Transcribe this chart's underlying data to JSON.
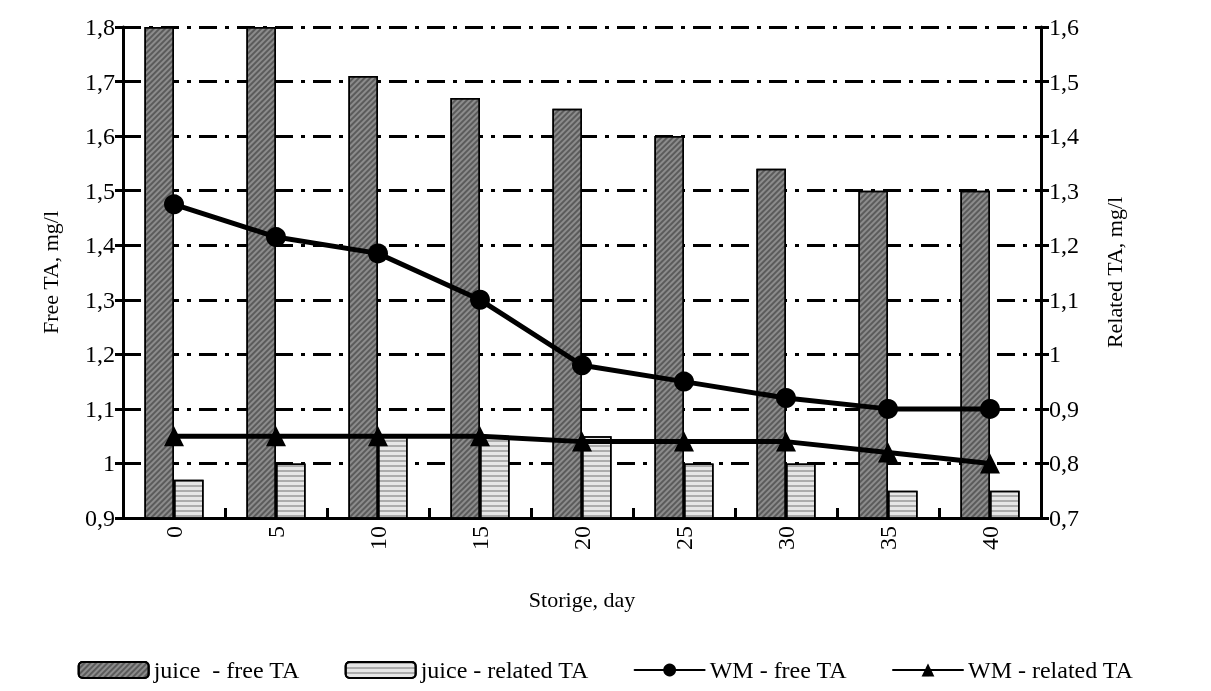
{
  "chart_data": {
    "type": "bar",
    "xlabel": "Storige, day",
    "ylabel": "Free TA, mg/l",
    "y2label": "Related TA, mg/l",
    "categories": [
      "0",
      "5",
      "10",
      "15",
      "20",
      "25",
      "30",
      "35",
      "40"
    ],
    "series": [
      {
        "name": "juice  - free TA",
        "color": "#8c8c8c",
        "values": [
          1.8,
          1.8,
          1.71,
          1.67,
          1.65,
          1.6,
          1.54,
          1.5,
          1.5
        ]
      },
      {
        "name": "juice - related TA",
        "axis": "y2",
        "color": "#e6e6e6",
        "values": [
          0.77,
          0.8,
          0.85,
          0.85,
          0.85,
          0.8,
          0.8,
          0.75,
          0.75
        ]
      },
      {
        "name": "WM - free TA",
        "type": "line",
        "color": "#000000",
        "marker": "circle",
        "line_style": "solid",
        "values": [
          1.475,
          1.415,
          1.385,
          1.3,
          1.18,
          1.15,
          1.12,
          1.1,
          1.1
        ]
      },
      {
        "name": "WM - related TA",
        "type": "line",
        "axis": "y2",
        "color": "#000000",
        "marker": "triangle",
        "line_style": "solid",
        "values": [
          0.85,
          0.85,
          0.85,
          0.85,
          0.84,
          0.84,
          0.84,
          0.82,
          0.8
        ]
      }
    ],
    "ylim": [
      0.9,
      1.8
    ],
    "yticks": [
      {
        "value": 0.9,
        "label": "0,9"
      },
      {
        "value": 1.0,
        "label": "1"
      },
      {
        "value": 1.1,
        "label": "1,1"
      },
      {
        "value": 1.2,
        "label": "1,2"
      },
      {
        "value": 1.3,
        "label": "1,3"
      },
      {
        "value": 1.4,
        "label": "1,4"
      },
      {
        "value": 1.5,
        "label": "1,5"
      },
      {
        "value": 1.6,
        "label": "1,6"
      },
      {
        "value": 1.7,
        "label": "1,7"
      },
      {
        "value": 1.8,
        "label": "1,8"
      }
    ],
    "y2lim": [
      0.7,
      1.6
    ],
    "y2ticks": [
      {
        "value": 0.7,
        "label": "0,7"
      },
      {
        "value": 0.8,
        "label": "0,8"
      },
      {
        "value": 0.9,
        "label": "0,9"
      },
      {
        "value": 1.0,
        "label": "1"
      },
      {
        "value": 1.1,
        "label": "1,1"
      },
      {
        "value": 1.2,
        "label": "1,2"
      },
      {
        "value": 1.3,
        "label": "1,3"
      },
      {
        "value": 1.4,
        "label": "1,4"
      },
      {
        "value": 1.5,
        "label": "1,5"
      },
      {
        "value": 1.6,
        "label": "1,6"
      }
    ],
    "grid": "y",
    "legend": "bottom"
  }
}
